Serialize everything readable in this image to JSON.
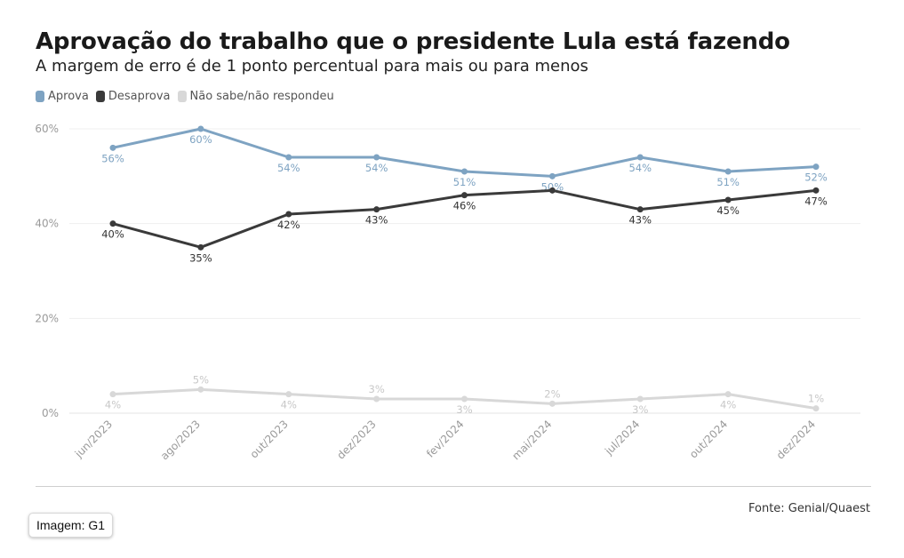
{
  "header": {
    "title": "Aprovação do trabalho que o presidente Lula está fazendo",
    "subtitle": "A margem de erro é de 1 ponto percentual para mais ou para menos"
  },
  "legend": [
    {
      "label": "Aprova",
      "color": "#7ea3c2"
    },
    {
      "label": "Desaprova",
      "color": "#3a3a3a"
    },
    {
      "label": "Não sabe/não respondeu",
      "color": "#d8d8d8"
    }
  ],
  "chart_data": {
    "type": "line",
    "categories": [
      "jun/2023",
      "ago/2023",
      "out/2023",
      "dez/2023",
      "fev/2024",
      "mai/2024",
      "jul/2024",
      "out/2024",
      "dez/2024"
    ],
    "series": [
      {
        "name": "Aprova",
        "color": "#7ea3c2",
        "label_color": "#7ea3c2",
        "label_position": "below",
        "values": [
          56,
          60,
          54,
          54,
          51,
          50,
          54,
          51,
          52
        ],
        "labels": [
          "56%",
          "60%",
          "54%",
          "54%",
          "51%",
          "50%",
          "54%",
          "51%",
          "52%"
        ]
      },
      {
        "name": "Desaprova",
        "color": "#3a3a3a",
        "label_color": "#333333",
        "label_position": "below",
        "values": [
          40,
          35,
          42,
          43,
          46,
          47,
          43,
          45,
          47
        ],
        "labels": [
          "40%",
          "35%",
          "42%",
          "43%",
          "46%",
          "",
          "43%",
          "45%",
          "47%"
        ]
      },
      {
        "name": "Não sabe/não respondeu",
        "color": "#d8d8d8",
        "label_color": "#c8c8c8",
        "label_position": "alternating",
        "values": [
          4,
          5,
          4,
          3,
          3,
          2,
          3,
          4,
          1
        ],
        "labels": [
          "4%",
          "5%",
          "4%",
          "3%",
          "3%",
          "2%",
          "3%",
          "4%",
          "1%"
        ]
      }
    ],
    "y_ticks": [
      "0%",
      "20%",
      "40%",
      "60%"
    ],
    "y_tick_values": [
      0,
      20,
      40,
      60
    ],
    "ylim": [
      0,
      60
    ],
    "grid": true,
    "legend_position": "top-left",
    "xlabel": "",
    "ylabel": ""
  },
  "footer": {
    "source": "Fonte: Genial/Quaest",
    "credit": "Imagem: G1"
  }
}
